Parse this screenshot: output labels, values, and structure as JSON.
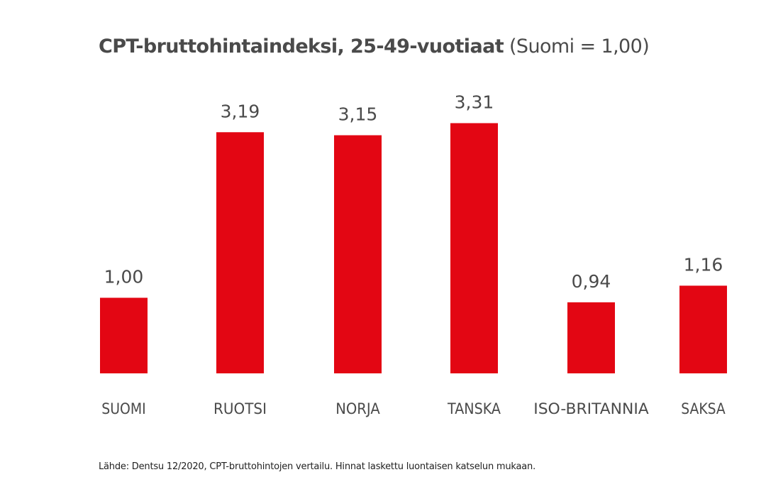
{
  "chart_data": {
    "type": "bar",
    "title": "CPT-bruttohintaindeksi, 25-49-vuotiaat",
    "subtitle": "(Suomi = 1,00)",
    "categories": [
      "SUOMI",
      "RUOTSI",
      "NORJA",
      "TANSKA",
      "ISO-BRITANNIA",
      "SAKSA"
    ],
    "values": [
      1.0,
      3.19,
      3.15,
      3.31,
      0.94,
      1.16
    ],
    "value_labels": [
      "1,00",
      "3,19",
      "3,15",
      "3,31",
      "0,94",
      "1,16"
    ],
    "xlabel": "",
    "ylabel": "",
    "ylim": [
      0,
      3.5
    ],
    "grid": false,
    "bar_color": "#e30613"
  },
  "source": "Lähde: Dentsu 12/2020, CPT-bruttohintojen vertailu. Hinnat laskettu luontaisen katselun mukaan."
}
